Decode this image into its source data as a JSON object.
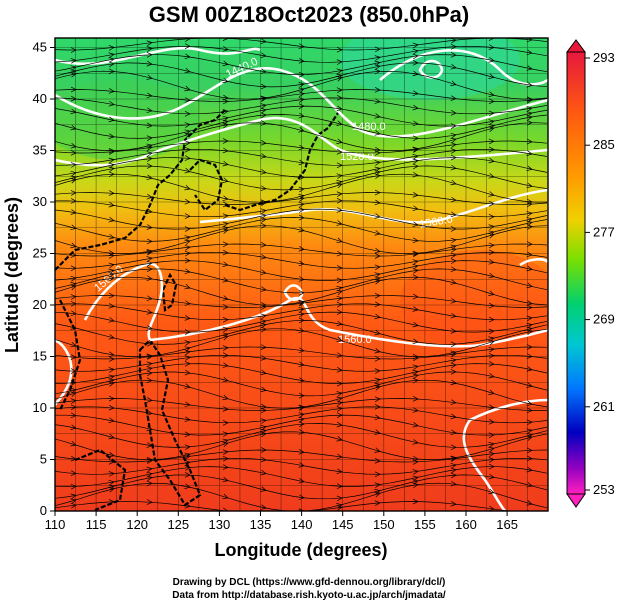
{
  "title": "GSM 00Z18Oct2023 (850.0hPa)",
  "x_axis": {
    "label": "Longitude (degrees)",
    "ticks": [
      "110",
      "115",
      "120",
      "125",
      "130",
      "135",
      "140",
      "145",
      "150",
      "155",
      "160",
      "165"
    ]
  },
  "y_axis": {
    "label": "Latitude  (degrees)",
    "ticks": [
      "0",
      "5",
      "10",
      "15",
      "20",
      "25",
      "30",
      "35",
      "40",
      "45"
    ]
  },
  "colorbar": {
    "labels": [
      "293",
      "285",
      "277",
      "269",
      "261",
      "253"
    ],
    "colors": [
      "#e0103a",
      "#ff5a10",
      "#ff9a00",
      "#f0d000",
      "#78e000",
      "#00d070",
      "#00c8d0",
      "#0080ff",
      "#0000c0",
      "#9000c0",
      "#ff20c0"
    ]
  },
  "contours": [
    {
      "label": "1440.0"
    },
    {
      "label": "1480.0"
    },
    {
      "label": "1520.0"
    },
    {
      "label": "1560.0"
    },
    {
      "label": "1560.0"
    },
    {
      "label": "1560.0"
    }
  ],
  "credits": {
    "line1": "Drawing by DCL (https://www.gfd-dennou.org/library/dcl/)",
    "line2": "Data from http://database.rish.kyoto-u.ac.jp/arch/jmadata/"
  }
}
